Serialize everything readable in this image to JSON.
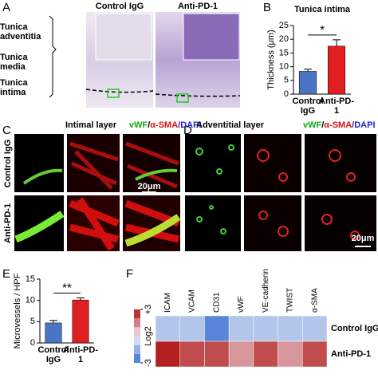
{
  "panel_labels": [
    "A",
    "B",
    "C",
    "D",
    "E",
    "F"
  ],
  "panel_a": {
    "columns": [
      "Control IgG",
      "Anti-PD-1"
    ],
    "layers": [
      "Tunica adventitia",
      "Tunica media",
      "Tunica intima"
    ]
  },
  "panel_c": {
    "title": "Intimal layer",
    "stain": [
      "vWF",
      "/",
      "α-SMA",
      "/DAPI"
    ],
    "rows": [
      "Control IgG",
      "Anti-PD-1"
    ],
    "scale_bar": "20μm"
  },
  "panel_d": {
    "title": "Adventitial layer",
    "stain": [
      "vWF",
      "/",
      "α-SMA",
      "/DAPI"
    ],
    "scale_bar": "20μm"
  },
  "chart_data": [
    {
      "type": "bar",
      "title": "Tunica intima",
      "y_label": "Thickness (μm)",
      "categories": [
        "Control IgG",
        "Anti-PD-1"
      ],
      "values": [
        8.3,
        17.5
      ],
      "errors": [
        0.8,
        2.3
      ],
      "colors": [
        "#4a74c4",
        "#e02020"
      ],
      "ylim": [
        0,
        25
      ],
      "yticks": [
        0,
        5,
        10,
        15,
        20,
        25
      ],
      "annotation": "*"
    },
    {
      "type": "bar",
      "y_label": "Microvessels / HPF",
      "categories": [
        "Control IgG",
        "Anti-PD-1"
      ],
      "values": [
        4.7,
        10.1
      ],
      "errors": [
        0.6,
        0.5
      ],
      "colors": [
        "#4a74c4",
        "#e02020"
      ],
      "ylim": [
        0,
        15
      ],
      "yticks": [
        0,
        5,
        10,
        15
      ],
      "annotation": "**"
    },
    {
      "type": "heatmap",
      "columns": [
        "ICAM",
        "VCAM",
        "CD31",
        "vWF",
        "VE-cadherin",
        "TWIST",
        "α-SMA"
      ],
      "rows": [
        "Control IgG",
        "Anti-PD-1"
      ],
      "values": [
        [
          -1,
          -1,
          -2.5,
          -1,
          -1,
          -1,
          -1
        ],
        [
          2.8,
          2.2,
          2.2,
          1.2,
          2.2,
          1.2,
          2.2
        ]
      ],
      "zlim": [
        -3,
        3
      ],
      "colorbar_label": "Log2",
      "colorbar_ticks": [
        -3,
        {
          "value": 3,
          "label": "+3"
        }
      ]
    }
  ]
}
